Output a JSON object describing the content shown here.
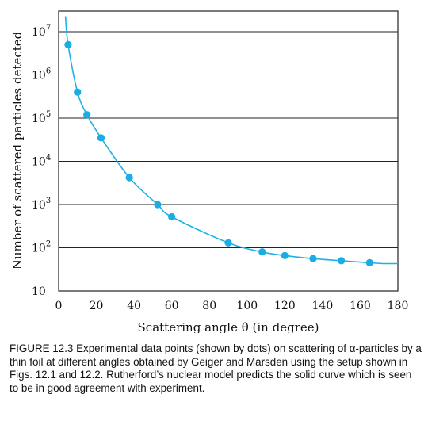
{
  "chart_data": {
    "type": "scatter",
    "title": "",
    "xlabel": "Scattering angle θ (in degree)",
    "ylabel": "Number of scattered particles detected",
    "xlim": [
      0,
      180
    ],
    "ylim": [
      10,
      30000000
    ],
    "yscale": "log",
    "grid": true,
    "x_ticks": [
      "0",
      "20",
      "40",
      "60",
      "80",
      "100",
      "120",
      "140",
      "160",
      "180"
    ],
    "y_ticks": [
      {
        "value": 10,
        "base": "10",
        "exp": ""
      },
      {
        "value": 100,
        "base": "10",
        "exp": "2"
      },
      {
        "value": 1000,
        "base": "10",
        "exp": "3"
      },
      {
        "value": 10000,
        "base": "10",
        "exp": "4"
      },
      {
        "value": 100000,
        "base": "10",
        "exp": "5"
      },
      {
        "value": 1000000,
        "base": "10",
        "exp": "6"
      },
      {
        "value": 10000000,
        "base": "10",
        "exp": "7"
      }
    ],
    "points": [
      {
        "x": 5,
        "y": 5000000
      },
      {
        "x": 10,
        "y": 400000
      },
      {
        "x": 15,
        "y": 120000
      },
      {
        "x": 22.5,
        "y": 35000
      },
      {
        "x": 37.5,
        "y": 4200
      },
      {
        "x": 52.5,
        "y": 1000
      },
      {
        "x": 60,
        "y": 520
      },
      {
        "x": 90,
        "y": 130
      },
      {
        "x": 108,
        "y": 80
      },
      {
        "x": 120,
        "y": 66
      },
      {
        "x": 135,
        "y": 56
      },
      {
        "x": 150,
        "y": 50
      },
      {
        "x": 165,
        "y": 45
      }
    ],
    "curve_color": "#1fb2e6",
    "point_color": "#18ade3"
  },
  "caption": "FIGURE 12.3 Experimental data points (shown by dots) on scattering of α-particles by a thin foil at different angles obtained by Geiger and Marsden using the setup shown in Figs. 12.1 and 12.2. Rutherford’s nuclear model predicts the solid curve which is seen to be in good agreement with experiment."
}
